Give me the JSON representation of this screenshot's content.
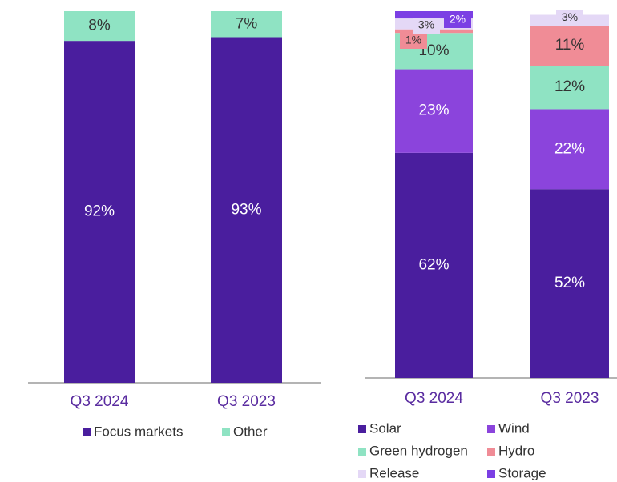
{
  "chart_data": [
    {
      "type": "bar",
      "stacked": true,
      "categories": [
        "Q3 2024",
        "Q3 2023"
      ],
      "series": [
        {
          "name": "Focus markets",
          "color": "#4a1e9e",
          "values": [
            92,
            93
          ],
          "value_labels": [
            "92%",
            "93%"
          ]
        },
        {
          "name": "Other",
          "color": "#8fe3c3",
          "values": [
            8,
            7
          ],
          "value_labels": [
            "8%",
            "7%"
          ]
        }
      ]
    },
    {
      "type": "bar",
      "stacked": true,
      "categories": [
        "Q3 2024",
        "Q3 2023"
      ],
      "series": [
        {
          "name": "Solar",
          "color": "#4a1e9e",
          "values": [
            62,
            52
          ],
          "value_labels": [
            "62%",
            "52%"
          ]
        },
        {
          "name": "Wind",
          "color": "#8b44dc",
          "values": [
            23,
            22
          ],
          "value_labels": [
            "23%",
            "22%"
          ]
        },
        {
          "name": "Green hydrogen",
          "color": "#8fe3c3",
          "values": [
            10,
            12
          ],
          "value_labels": [
            "10%",
            "12%"
          ]
        },
        {
          "name": "Hydro",
          "color": "#f08c96",
          "values": [
            1,
            11
          ],
          "value_labels": [
            "1%",
            "11%"
          ]
        },
        {
          "name": "Release",
          "color": "#e4d8f6",
          "values": [
            3,
            3
          ],
          "value_labels": [
            "3%",
            "3%"
          ]
        },
        {
          "name": "Storage",
          "color": "#7b3fe4",
          "values": [
            2,
            null
          ],
          "value_labels": [
            "2%",
            null
          ]
        }
      ]
    }
  ]
}
